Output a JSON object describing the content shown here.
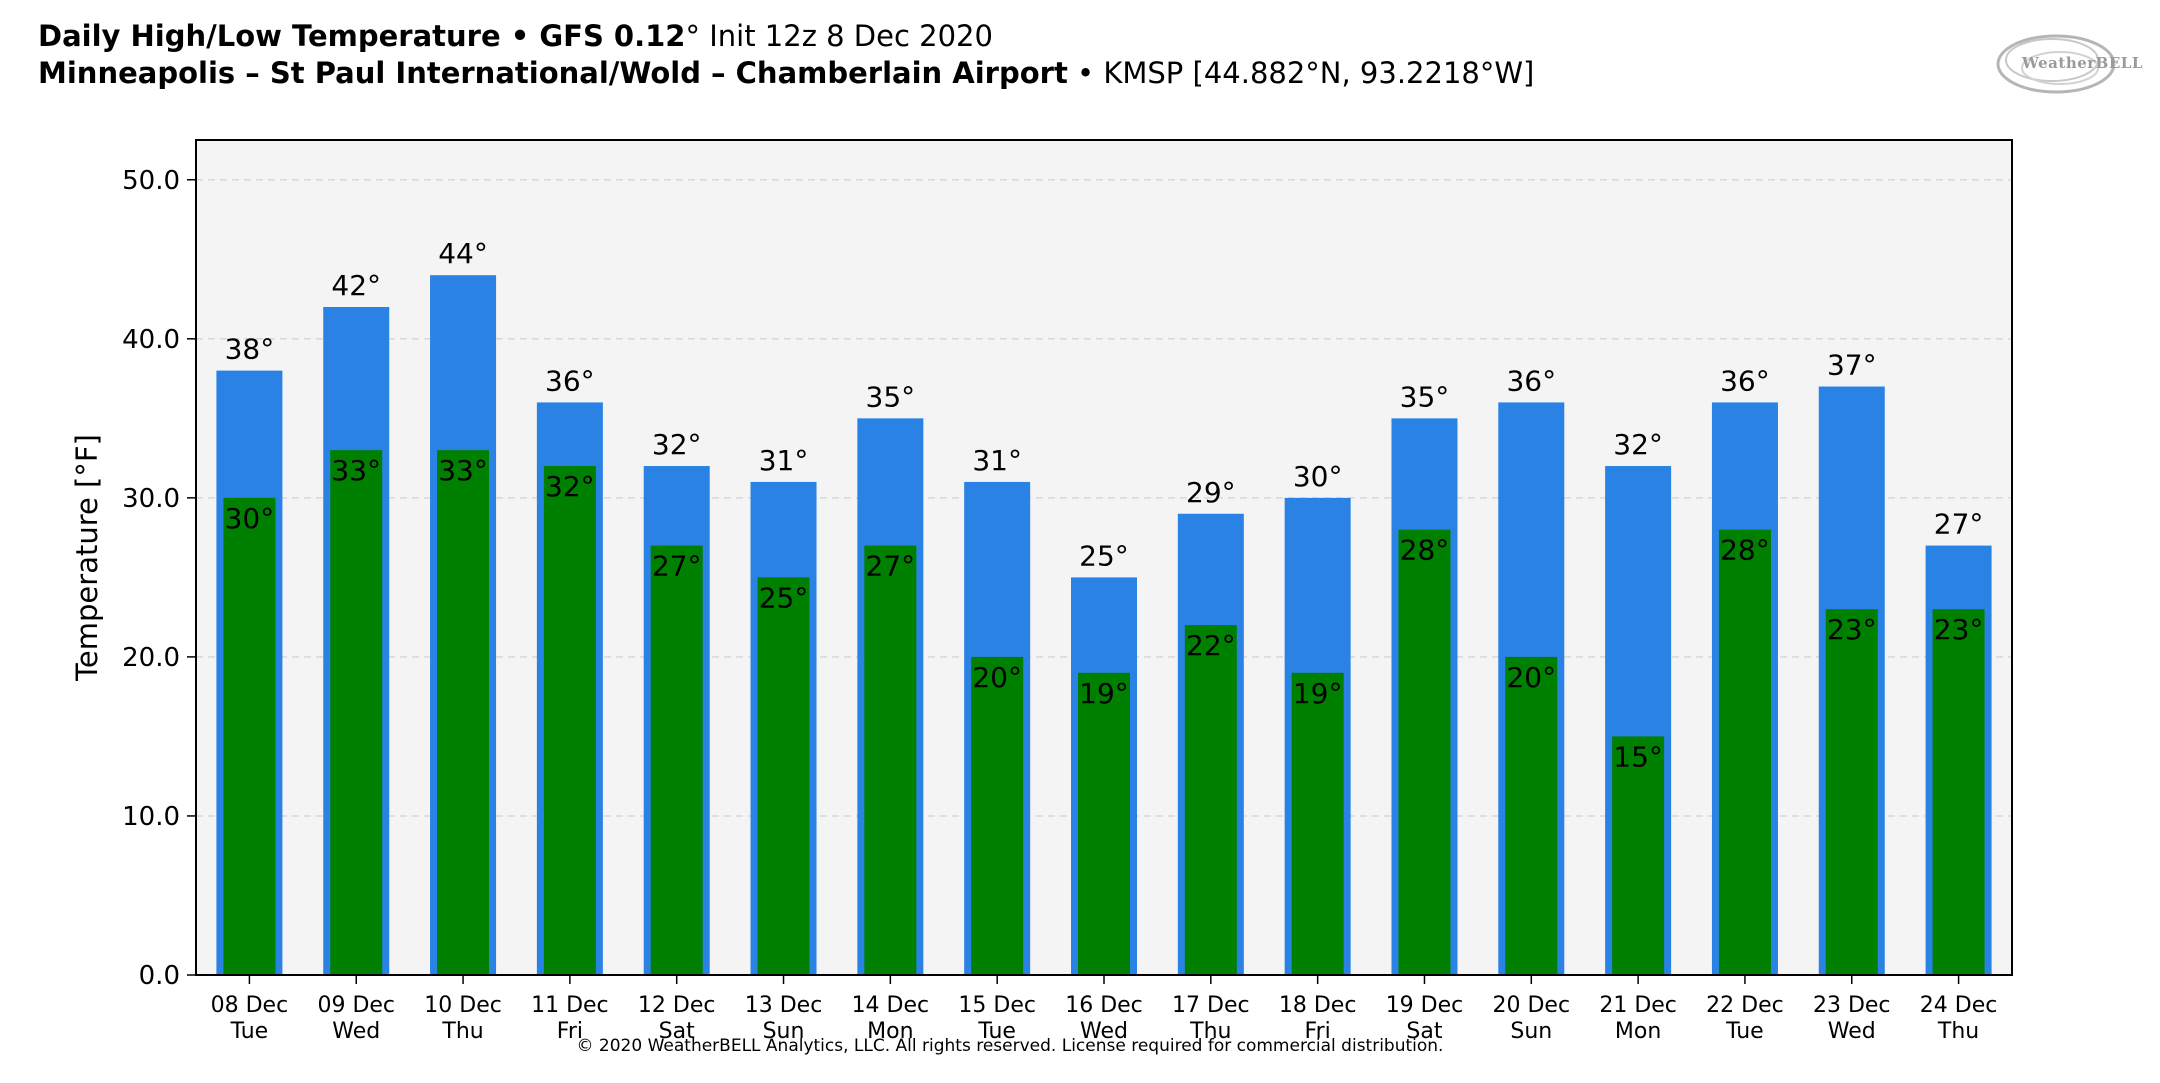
{
  "header": {
    "line1_bold": "Daily High/Low Temperature • GFS 0.12",
    "line1_deg": "°",
    "line1_rest": " Init 12z 8 Dec 2020",
    "line2_bold": "Minneapolis – St Paul International/Wold – Chamberlain Airport",
    "line2_rest": " • KMSP [44.882°N, 93.2218°W]"
  },
  "logo": {
    "text": "WeatherBELL"
  },
  "copyright": "© 2020 WeatherBELL Analytics, LLC. All rights reserved. License required for commercial distribution.",
  "colors": {
    "high": "#2a82e4",
    "low": "#008000",
    "plot_bg": "#f4f4f4",
    "grid": "#d8d8d8"
  },
  "chart_data": {
    "type": "bar",
    "ylabel": "Temperature [°F]",
    "ylim": [
      0,
      52.5
    ],
    "yticks": [
      "0.0",
      "10.0",
      "20.0",
      "30.0",
      "40.0",
      "50.0"
    ],
    "ytick_values": [
      0,
      10,
      20,
      30,
      40,
      50
    ],
    "grid": true,
    "categories": [
      [
        "08 Dec",
        "Tue"
      ],
      [
        "09 Dec",
        "Wed"
      ],
      [
        "10 Dec",
        "Thu"
      ],
      [
        "11 Dec",
        "Fri"
      ],
      [
        "12 Dec",
        "Sat"
      ],
      [
        "13 Dec",
        "Sun"
      ],
      [
        "14 Dec",
        "Mon"
      ],
      [
        "15 Dec",
        "Tue"
      ],
      [
        "16 Dec",
        "Wed"
      ],
      [
        "17 Dec",
        "Thu"
      ],
      [
        "18 Dec",
        "Fri"
      ],
      [
        "19 Dec",
        "Sat"
      ],
      [
        "20 Dec",
        "Sun"
      ],
      [
        "21 Dec",
        "Mon"
      ],
      [
        "22 Dec",
        "Tue"
      ],
      [
        "23 Dec",
        "Wed"
      ],
      [
        "24 Dec",
        "Thu"
      ]
    ],
    "series": [
      {
        "name": "High",
        "values": [
          38,
          42,
          44,
          36,
          32,
          31,
          35,
          31,
          25,
          29,
          30,
          35,
          36,
          32,
          36,
          37,
          27
        ],
        "labels": [
          "38°",
          "42°",
          "44°",
          "36°",
          "32°",
          "31°",
          "35°",
          "31°",
          "25°",
          "29°",
          "30°",
          "35°",
          "36°",
          "32°",
          "36°",
          "37°",
          "27°"
        ]
      },
      {
        "name": "Low",
        "values": [
          30,
          33,
          33,
          32,
          27,
          25,
          27,
          20,
          19,
          22,
          19,
          28,
          20,
          15,
          28,
          23,
          23
        ],
        "labels": [
          "30°",
          "33°",
          "33°",
          "32°",
          "27°",
          "25°",
          "27°",
          "20°",
          "19°",
          "22°",
          "19°",
          "28°",
          "20°",
          "15°",
          "28°",
          "23°",
          "23°"
        ]
      }
    ]
  }
}
